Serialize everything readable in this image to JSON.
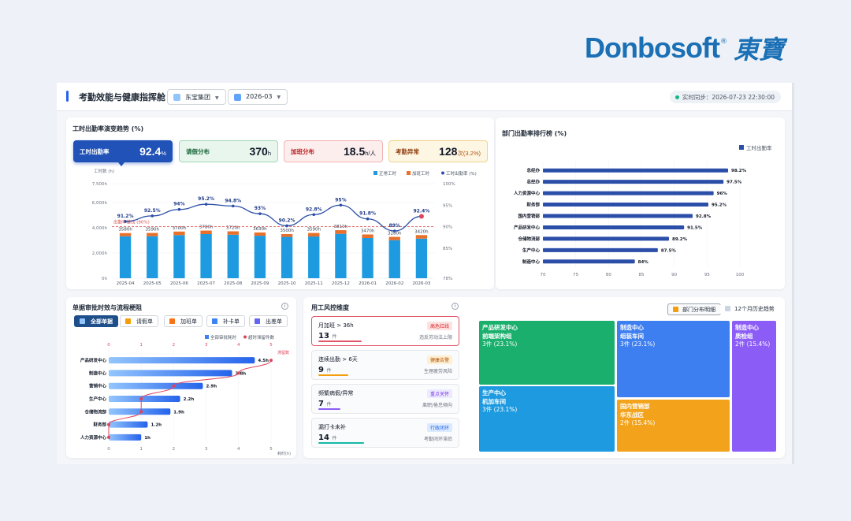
{
  "brand": {
    "word": "Donbosoft",
    "reg": "®",
    "cn": "東寶"
  },
  "header": {
    "title": "考勤效能与健康指挥舱",
    "group": "东宝集团",
    "month": "2026-03",
    "sync": "实时同步：2026-07-23 22:30:00"
  },
  "trend": {
    "title": "工时出勤率演变趋势 (%)",
    "kpis": [
      {
        "label": "工时出勤率",
        "value": "92.4",
        "unit": "%"
      },
      {
        "label": "请假分布",
        "value": "370",
        "unit": "h"
      },
      {
        "label": "加班分布",
        "value": "18.5",
        "unit": "h/人"
      },
      {
        "label": "考勤异常",
        "value": "128",
        "unit": "次(3.2%)"
      }
    ],
    "colors": {
      "normal": "#1e9be0",
      "overtime": "#e8702a",
      "rate": "#2b4ea8"
    },
    "legend": [
      "正常工时",
      "加班工时",
      "工时出勤率 (%)"
    ],
    "y_left_label": "工时数 (h)",
    "target_label": "出勤率基线 (90%)"
  },
  "dept_rank": {
    "title": "部门出勤率排行榜 (%)",
    "legend": "工时出勤率"
  },
  "approval": {
    "title": "单据审批时效与流程梗阻",
    "tabs": [
      "全部单据",
      "请假单",
      "加班单",
      "补卡单",
      "出差单"
    ],
    "legend": [
      "全部审批耗时",
      "超时滞留件数"
    ],
    "unit": "耗时(h)",
    "top_axis_label": "滞留数"
  },
  "risk": {
    "title": "用工风控维度",
    "items": [
      {
        "name": "月加班 > 36h",
        "count": "13",
        "unit": "件",
        "tag": "高危红线",
        "desc": "违反劳动法上限"
      },
      {
        "name": "连续出勤 > 6天",
        "count": "9",
        "unit": "件",
        "tag": "健康告警",
        "desc": "生理疲劳风险"
      },
      {
        "name": "频繁病假/异常",
        "count": "7",
        "unit": "件",
        "tag": "重点关怀",
        "desc": "离职/倦怠倾向"
      },
      {
        "name": "漏打卡未补",
        "count": "14",
        "unit": "件",
        "tag": "行政闭环",
        "desc": "考勤闭环滞后"
      }
    ],
    "btn_dept": "部门分布明细",
    "btn_hist": "12个月历史趋势",
    "treemap": [
      {
        "l1": "产品研发中心",
        "l2": "前端架构组",
        "v": "3件 (23.1%)"
      },
      {
        "l1": "生产中心",
        "l2": "机加车间",
        "v": "3件 (23.1%)"
      },
      {
        "l1": "制造中心",
        "l2": "组装车间",
        "v": "3件 (23.1%)"
      },
      {
        "l1": "国内营销部",
        "l2": "华东战区",
        "v": "2件 (15.4%)"
      },
      {
        "l1": "制造中心",
        "l2": "质检组",
        "v": "2件 (15.4%)"
      }
    ]
  },
  "chart_data": [
    {
      "type": "bar",
      "title": "工时出勤率演变趋势 (%)",
      "categories": [
        "2025-04",
        "2025-05",
        "2025-06",
        "2025-07",
        "2025-08",
        "2025-09",
        "2025-10",
        "2025-11",
        "2025-12",
        "2026-01",
        "2026-02",
        "2026-03"
      ],
      "series": [
        {
          "name": "正常工时",
          "values": [
            3330,
            3330,
            3420,
            3500,
            3450,
            3370,
            3280,
            3310,
            3520,
            3190,
            3020,
            3140
          ]
        },
        {
          "name": "加班工时",
          "values": [
            250,
            260,
            280,
            280,
            270,
            260,
            220,
            280,
            290,
            280,
            260,
            280
          ]
        },
        {
          "name": "工时出勤率 (%)",
          "values": [
            91.2,
            92.5,
            94,
            95.2,
            94.8,
            93,
            90.2,
            92.8,
            95,
            91.8,
            89,
            92.4
          ]
        }
      ],
      "bar_labels": [
        "3580h",
        "3590h",
        "3700h",
        "3780h",
        "3720h",
        "3630h",
        "3500h",
        "3590h",
        "3810h",
        "3470h",
        "3280h",
        "3420h"
      ],
      "ylim_left": [
        0,
        7500
      ],
      "yticks_left": [
        "0h",
        "2,000h",
        "4,000h",
        "6,000h",
        "7,500h"
      ],
      "ylim_right": [
        78,
        100
      ],
      "yticks_right": [
        "78%",
        "85%",
        "90%",
        "95%",
        "100%"
      ],
      "target": 90
    },
    {
      "type": "bar",
      "title": "部门出勤率排行榜 (%)",
      "orientation": "horizontal",
      "categories": [
        "总经办",
        "总经办",
        "人力资源中心",
        "财务部",
        "国内营销部",
        "产品研发中心",
        "仓储物流部",
        "生产中心",
        "制造中心"
      ],
      "values": [
        98.2,
        97.5,
        96,
        95.2,
        92.8,
        91.5,
        89.2,
        87.5,
        84
      ],
      "xlim": [
        70,
        100
      ],
      "xticks": [
        70,
        75,
        80,
        85,
        90,
        95,
        100
      ]
    },
    {
      "type": "bar",
      "title": "单据审批时效与流程梗阻",
      "orientation": "horizontal",
      "categories": [
        "产品研发中心",
        "制造中心",
        "营销中心",
        "生产中心",
        "仓储物流部",
        "财务部",
        "人力资源中心"
      ],
      "series": [
        {
          "name": "全部审批耗时",
          "values": [
            4.5,
            3.8,
            2.9,
            2.2,
            1.9,
            1.2,
            1
          ]
        },
        {
          "name": "超时滞留件数",
          "values": [
            5,
            4,
            2,
            1,
            1,
            0,
            0
          ]
        }
      ],
      "xlim": [
        0,
        5
      ]
    }
  ]
}
